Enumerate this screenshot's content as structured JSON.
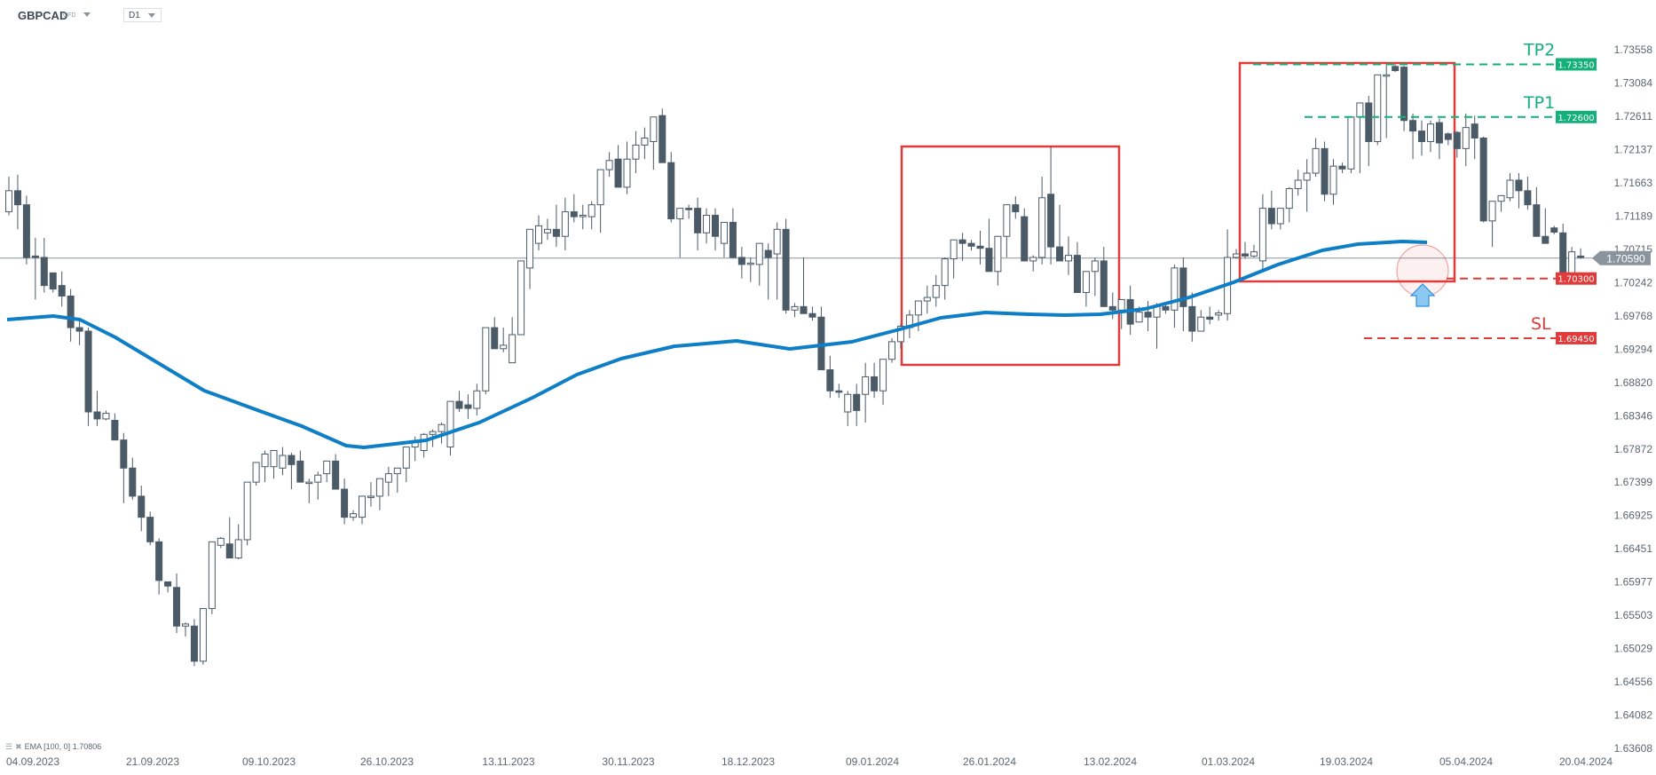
{
  "header": {
    "symbol": "GBPCAD",
    "symbol_type": "CFD",
    "timeframe": "D1"
  },
  "indicator_legend": {
    "name": "EMA",
    "params": "[100,  0]",
    "value": "1.70806"
  },
  "colors": {
    "bear": "#4a5a67",
    "bull_outline": "#4a5a67",
    "ema": "#0e7fc6",
    "box": "#e03a3a",
    "tp": "#14b07a",
    "entry": "#e03a3a",
    "current": "#8a949c"
  },
  "chart_data": {
    "type": "candlestick",
    "title": "GBPCAD CFD D1",
    "xlabel": "",
    "ylabel": "",
    "ylim": [
      1.63608,
      1.73558
    ],
    "y_ticks": [
      "1.73558",
      "1.73084",
      "1.72611",
      "1.72137",
      "1.71663",
      "1.71189",
      "1.70715",
      "1.70242",
      "1.69768",
      "1.69294",
      "1.68820",
      "1.68346",
      "1.67872",
      "1.67399",
      "1.66925",
      "1.66451",
      "1.65977",
      "1.65503",
      "1.65029",
      "1.64556",
      "1.64082",
      "1.63608"
    ],
    "x_ticks": [
      "04.09.2023",
      "21.09.2023",
      "09.10.2023",
      "26.10.2023",
      "13.11.2023",
      "30.11.2023",
      "18.12.2023",
      "09.01.2024",
      "26.01.2024",
      "13.02.2024",
      "01.03.2024",
      "19.03.2024",
      "05.04.2024",
      "20.04.2024"
    ],
    "current_price": "1.70590",
    "indicator": {
      "name": "EMA",
      "period": 100,
      "last_value": 1.70806
    },
    "levels": [
      {
        "label": "TP2",
        "price": "1.73350",
        "type": "take-profit"
      },
      {
        "label": "TP1",
        "price": "1.72600",
        "type": "take-profit"
      },
      {
        "label": "",
        "price": "1.70300",
        "type": "entry"
      },
      {
        "label": "SL",
        "price": "1.69450",
        "type": "stop-loss"
      }
    ],
    "annotations": [
      {
        "type": "rectangle",
        "from": "~09.01.2024",
        "to": "~13.02.2024",
        "top": 1.722,
        "bottom": 1.692
      },
      {
        "type": "rectangle",
        "from": "~01.03.2024",
        "to": "~29.03.2024",
        "top": 1.7336,
        "bottom": 1.703
      },
      {
        "type": "circle",
        "near": "last candles",
        "price": 1.7048
      },
      {
        "type": "arrow-up",
        "near": "last candles"
      }
    ],
    "ohlc": [
      [
        1.7125,
        1.7175,
        1.712,
        1.7155
      ],
      [
        1.7155,
        1.7178,
        1.71,
        1.7135
      ],
      [
        1.7135,
        1.7148,
        1.705,
        1.706
      ],
      [
        1.7062,
        1.7088,
        1.7,
        1.706
      ],
      [
        1.706,
        1.7088,
        1.701,
        1.702
      ],
      [
        1.7038,
        1.7038,
        1.701,
        1.7015
      ],
      [
        1.702,
        1.704,
        1.699,
        1.7005
      ],
      [
        1.7005,
        1.7015,
        1.694,
        1.696
      ],
      [
        1.696,
        1.697,
        1.6935,
        1.6955
      ],
      [
        1.6955,
        1.696,
        1.682,
        1.684
      ],
      [
        1.684,
        1.687,
        1.682,
        1.683
      ],
      [
        1.683,
        1.6842,
        1.6828,
        1.6838
      ],
      [
        1.6828,
        1.6838,
        1.68,
        1.68
      ],
      [
        1.68,
        1.681,
        1.671,
        1.676
      ],
      [
        1.676,
        1.6775,
        1.6715,
        1.672
      ],
      [
        1.672,
        1.6735,
        1.667,
        1.669
      ],
      [
        1.669,
        1.6698,
        1.665,
        1.6655
      ],
      [
        1.6655,
        1.666,
        1.658,
        1.66
      ],
      [
        1.6598,
        1.6598,
        1.6583,
        1.6592
      ],
      [
        1.659,
        1.661,
        1.6525,
        1.6535
      ],
      [
        1.6535,
        1.654,
        1.652,
        1.6538
      ],
      [
        1.6535,
        1.6545,
        1.6478,
        1.6485
      ],
      [
        1.6485,
        1.656,
        1.648,
        1.656
      ],
      [
        1.656,
        1.663,
        1.6552,
        1.6655
      ],
      [
        1.665,
        1.6662,
        1.6646,
        1.666
      ],
      [
        1.6652,
        1.669,
        1.6645,
        1.6632
      ],
      [
        1.6632,
        1.668,
        1.663,
        1.6658
      ],
      [
        1.6658,
        1.6705,
        1.665,
        1.674
      ],
      [
        1.674,
        1.676,
        1.6735,
        1.6768
      ],
      [
        1.6762,
        1.6785,
        1.674,
        1.678
      ],
      [
        1.6762,
        1.6785,
        1.6745,
        1.6785
      ],
      [
        1.676,
        1.679,
        1.675,
        1.6778
      ],
      [
        1.6778,
        1.6782,
        1.673,
        1.6765
      ],
      [
        1.677,
        1.6785,
        1.6768,
        1.674
      ],
      [
        1.674,
        1.6745,
        1.671,
        1.674
      ],
      [
        1.674,
        1.6755,
        1.6715,
        1.675
      ],
      [
        1.6752,
        1.6765,
        1.674,
        1.677
      ],
      [
        1.677,
        1.678,
        1.6745,
        1.673
      ],
      [
        1.673,
        1.6745,
        1.668,
        1.669
      ],
      [
        1.669,
        1.67,
        1.6685,
        1.6695
      ],
      [
        1.669,
        1.672,
        1.668,
        1.672
      ],
      [
        1.672,
        1.674,
        1.6705,
        1.672
      ],
      [
        1.672,
        1.6735,
        1.67,
        1.6745
      ],
      [
        1.674,
        1.6762,
        1.672,
        1.6752
      ],
      [
        1.6752,
        1.676,
        1.6725,
        1.676
      ],
      [
        1.676,
        1.678,
        1.674,
        1.679
      ],
      [
        1.679,
        1.6805,
        1.677,
        1.6797
      ],
      [
        1.6785,
        1.681,
        1.6775,
        1.6808
      ],
      [
        1.6808,
        1.6815,
        1.679,
        1.6812
      ],
      [
        1.6812,
        1.6825,
        1.6795,
        1.6822
      ],
      [
        1.679,
        1.6828,
        1.6778,
        1.6855
      ],
      [
        1.6855,
        1.687,
        1.684,
        1.6845
      ],
      [
        1.685,
        1.6865,
        1.683,
        1.6845
      ],
      [
        1.6845,
        1.688,
        1.6835,
        1.687
      ],
      [
        1.687,
        1.691,
        1.6865,
        1.696
      ],
      [
        1.696,
        1.6975,
        1.694,
        1.693
      ],
      [
        1.693,
        1.696,
        1.6925,
        1.6935
      ],
      [
        1.691,
        1.6975,
        1.691,
        1.695
      ],
      [
        1.695,
        1.705,
        1.6955,
        1.7055
      ],
      [
        1.7045,
        1.707,
        1.7015,
        1.71
      ],
      [
        1.708,
        1.712,
        1.707,
        1.7105
      ],
      [
        1.7095,
        1.7115,
        1.7085,
        1.71
      ],
      [
        1.71,
        1.7135,
        1.7075,
        1.709
      ],
      [
        1.709,
        1.7145,
        1.707,
        1.7125
      ],
      [
        1.7125,
        1.715,
        1.711,
        1.7118
      ],
      [
        1.7118,
        1.7135,
        1.71,
        1.712
      ],
      [
        1.7118,
        1.714,
        1.71,
        1.7135
      ],
      [
        1.7135,
        1.7185,
        1.7095,
        1.7185
      ],
      [
        1.7185,
        1.721,
        1.7175,
        1.7198
      ],
      [
        1.72,
        1.722,
        1.7165,
        1.716
      ],
      [
        1.716,
        1.7225,
        1.715,
        1.72
      ],
      [
        1.72,
        1.724,
        1.718,
        1.722
      ],
      [
        1.722,
        1.7245,
        1.72,
        1.723
      ],
      [
        1.7225,
        1.726,
        1.7185,
        1.726
      ],
      [
        1.7262,
        1.7272,
        1.722,
        1.7195
      ],
      [
        1.7195,
        1.721,
        1.711,
        1.7115
      ],
      [
        1.7115,
        1.713,
        1.706,
        1.713
      ],
      [
        1.713,
        1.7135,
        1.7115,
        1.7128
      ],
      [
        1.713,
        1.7145,
        1.707,
        1.7095
      ],
      [
        1.7095,
        1.713,
        1.708,
        1.712
      ],
      [
        1.712,
        1.713,
        1.707,
        1.709
      ],
      [
        1.708,
        1.711,
        1.706,
        1.711
      ],
      [
        1.711,
        1.713,
        1.708,
        1.706
      ],
      [
        1.706,
        1.7075,
        1.703,
        1.705
      ],
      [
        1.705,
        1.706,
        1.7025,
        1.7052
      ],
      [
        1.705,
        1.7075,
        1.702,
        1.708
      ],
      [
        1.707,
        1.708,
        1.7,
        1.706
      ],
      [
        1.7065,
        1.711,
        1.7,
        1.71
      ],
      [
        1.71,
        1.7115,
        1.698,
        1.6985
      ],
      [
        1.6985,
        1.6995,
        1.6975,
        1.699
      ],
      [
        1.699,
        1.706,
        1.698,
        1.698
      ],
      [
        1.698,
        1.699,
        1.697,
        1.6975
      ],
      [
        1.6975,
        1.699,
        1.694,
        1.69
      ],
      [
        1.69,
        1.692,
        1.686,
        1.687
      ],
      [
        1.687,
        1.688,
        1.686,
        1.6868
      ],
      [
        1.684,
        1.687,
        1.682,
        1.6865
      ],
      [
        1.6865,
        1.688,
        1.682,
        1.6842
      ],
      [
        1.6865,
        1.691,
        1.6825,
        1.689
      ],
      [
        1.689,
        1.691,
        1.686,
        1.687
      ],
      [
        1.687,
        1.69,
        1.685,
        1.6915
      ],
      [
        1.6915,
        1.6945,
        1.691,
        1.694
      ],
      [
        1.694,
        1.6965,
        1.693,
        1.6962
      ],
      [
        1.696,
        1.6985,
        1.6945,
        1.6978
      ],
      [
        1.6978,
        1.6995,
        1.6955,
        1.6998
      ],
      [
        1.6998,
        1.702,
        1.698,
        1.7003
      ],
      [
        1.7003,
        1.7035,
        1.699,
        1.702
      ],
      [
        1.702,
        1.706,
        1.7,
        1.7058
      ],
      [
        1.7058,
        1.707,
        1.703,
        1.7085
      ],
      [
        1.7085,
        1.7095,
        1.7055,
        1.708
      ],
      [
        1.708,
        1.7085,
        1.707,
        1.7076
      ],
      [
        1.7076,
        1.7098,
        1.705,
        1.7073
      ],
      [
        1.7073,
        1.7115,
        1.7055,
        1.704
      ],
      [
        1.704,
        1.709,
        1.702,
        1.709
      ],
      [
        1.709,
        1.712,
        1.706,
        1.7135
      ],
      [
        1.7135,
        1.7147,
        1.7115,
        1.7125
      ],
      [
        1.7118,
        1.713,
        1.7078,
        1.7055
      ],
      [
        1.7055,
        1.7063,
        1.704,
        1.706
      ],
      [
        1.706,
        1.7175,
        1.705,
        1.7145
      ],
      [
        1.715,
        1.7218,
        1.705,
        1.7075
      ],
      [
        1.7075,
        1.7135,
        1.706,
        1.7055
      ],
      [
        1.7055,
        1.709,
        1.7035,
        1.7063
      ],
      [
        1.7063,
        1.7082,
        1.7012,
        1.701
      ],
      [
        1.701,
        1.7035,
        1.699,
        1.704
      ],
      [
        1.704,
        1.706,
        1.7005,
        1.7055
      ],
      [
        1.7055,
        1.7075,
        1.7015,
        1.699
      ],
      [
        1.699,
        1.701,
        1.6972,
        1.6985
      ],
      [
        1.6985,
        1.7,
        1.6958,
        1.7
      ],
      [
        1.7,
        1.702,
        1.695,
        1.6965
      ],
      [
        1.6968,
        1.699,
        1.6978,
        1.6982
      ],
      [
        1.6982,
        1.6998,
        1.6955,
        1.6975
      ],
      [
        1.6975,
        1.6995,
        1.693,
        1.699
      ],
      [
        1.699,
        1.6996,
        1.698,
        1.6985
      ],
      [
        1.6985,
        1.705,
        1.696,
        1.7045
      ],
      [
        1.7045,
        1.706,
        1.6955,
        1.699
      ],
      [
        1.699,
        1.701,
        1.694,
        1.6955
      ],
      [
        1.6955,
        1.6985,
        1.696,
        1.6975
      ],
      [
        1.6975,
        1.699,
        1.6965,
        1.6972
      ],
      [
        1.6978,
        1.6985,
        1.697,
        1.6981
      ],
      [
        1.698,
        1.71,
        1.697,
        1.706
      ],
      [
        1.706,
        1.7072,
        1.7058,
        1.7065
      ],
      [
        1.7065,
        1.7082,
        1.7058,
        1.7062
      ],
      [
        1.7062,
        1.7078,
        1.706,
        1.7068
      ],
      [
        1.7055,
        1.715,
        1.704,
        1.713
      ],
      [
        1.713,
        1.7155,
        1.71,
        1.7108
      ],
      [
        1.7108,
        1.7122,
        1.71,
        1.713
      ],
      [
        1.713,
        1.716,
        1.711,
        1.7158
      ],
      [
        1.7158,
        1.7185,
        1.7148,
        1.717
      ],
      [
        1.717,
        1.72,
        1.7125,
        1.718
      ],
      [
        1.718,
        1.723,
        1.7175,
        1.7215
      ],
      [
        1.7215,
        1.7225,
        1.714,
        1.715
      ],
      [
        1.715,
        1.72,
        1.7135,
        1.719
      ],
      [
        1.719,
        1.7195,
        1.718,
        1.7186
      ],
      [
        1.7186,
        1.7225,
        1.718,
        1.726
      ],
      [
        1.726,
        1.7275,
        1.718,
        1.728
      ],
      [
        1.728,
        1.729,
        1.719,
        1.7225
      ],
      [
        1.7225,
        1.732,
        1.722,
        1.732
      ],
      [
        1.732,
        1.7335,
        1.723,
        1.732
      ],
      [
        1.7332,
        1.7335,
        1.7324,
        1.7326
      ],
      [
        1.7331,
        1.7333,
        1.724,
        1.7255
      ],
      [
        1.7255,
        1.7265,
        1.72,
        1.724
      ],
      [
        1.724,
        1.7255,
        1.7205,
        1.7225
      ],
      [
        1.7225,
        1.7255,
        1.721,
        1.725
      ],
      [
        1.7252,
        1.7258,
        1.72,
        1.7223
      ],
      [
        1.7236,
        1.7238,
        1.722,
        1.7228
      ],
      [
        1.7238,
        1.724,
        1.7202,
        1.7215
      ],
      [
        1.7215,
        1.7265,
        1.719,
        1.7245
      ],
      [
        1.725,
        1.7262,
        1.72,
        1.723
      ],
      [
        1.723,
        1.7232,
        1.711,
        1.7112
      ],
      [
        1.7112,
        1.714,
        1.7075,
        1.714
      ],
      [
        1.714,
        1.7145,
        1.7125,
        1.7148
      ],
      [
        1.7145,
        1.718,
        1.714,
        1.717
      ],
      [
        1.717,
        1.718,
        1.713,
        1.7155
      ],
      [
        1.7155,
        1.7175,
        1.7128,
        1.7135
      ],
      [
        1.7135,
        1.716,
        1.709,
        1.709
      ],
      [
        1.709,
        1.713,
        1.7088,
        1.708
      ],
      [
        1.7102,
        1.7105,
        1.7093,
        1.7096
      ],
      [
        1.7095,
        1.7108,
        1.703,
        1.7035
      ],
      [
        1.7035,
        1.7075,
        1.703,
        1.7068
      ],
      [
        1.7062,
        1.7073,
        1.7058,
        1.706
      ]
    ]
  }
}
